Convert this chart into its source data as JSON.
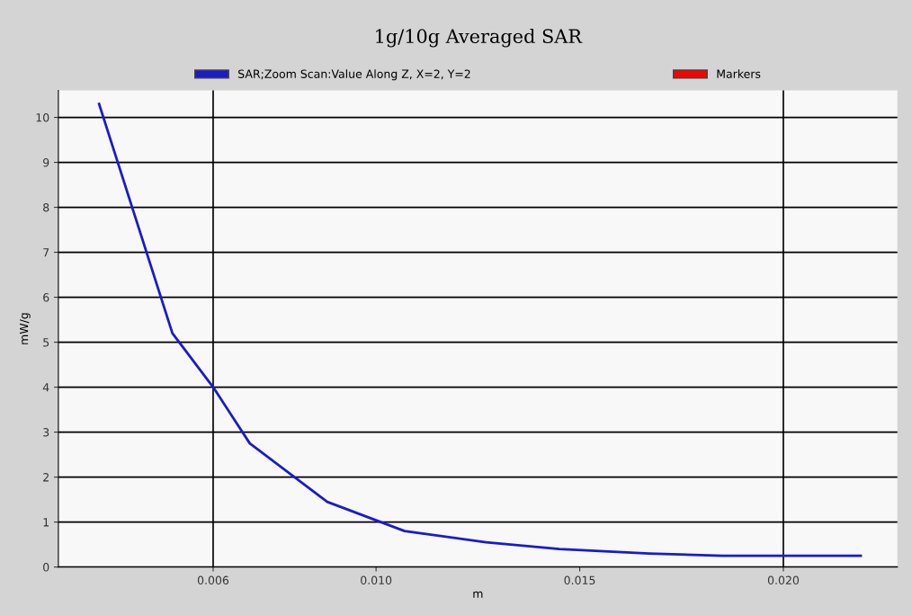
{
  "chart_data": {
    "type": "line",
    "title": "1g/10g Averaged SAR",
    "xlabel": "m",
    "ylabel": "mW/g",
    "x": [
      0.0032,
      0.005,
      0.006,
      0.0069,
      0.0088,
      0.0107,
      0.0127,
      0.0145,
      0.0167,
      0.0185,
      0.0219
    ],
    "series": [
      {
        "name": "SAR;Zoom Scan:Value Along Z, X=2, Y=2",
        "color": "#1a1ad0",
        "values": [
          10.3,
          5.2,
          4.0,
          2.75,
          1.45,
          0.8,
          0.55,
          0.4,
          0.3,
          0.25,
          0.25
        ]
      },
      {
        "name": "Markers",
        "color": "#ff0000",
        "values": [
          null,
          null,
          null,
          null,
          null,
          null,
          null,
          null,
          null,
          null,
          null
        ]
      }
    ],
    "xlim": [
      0.0022,
      0.0228
    ],
    "xticks": [
      {
        "value": 0.006,
        "label": "0.006"
      },
      {
        "value": 0.01,
        "label": "0.010"
      },
      {
        "value": 0.015,
        "label": "0.015"
      },
      {
        "value": 0.02,
        "label": "0.020"
      }
    ],
    "ylim": [
      0,
      10.6
    ],
    "yticks": [
      0,
      1,
      2,
      3,
      4,
      5,
      6,
      7,
      8,
      9,
      10
    ],
    "grid": "y",
    "legend": "top",
    "marker": "none",
    "line_style": "solid",
    "ref_lines": [
      {
        "axis": "x",
        "value": 0.006,
        "color": "#000000"
      },
      {
        "axis": "x",
        "value": 0.02,
        "color": "#000000"
      }
    ]
  }
}
